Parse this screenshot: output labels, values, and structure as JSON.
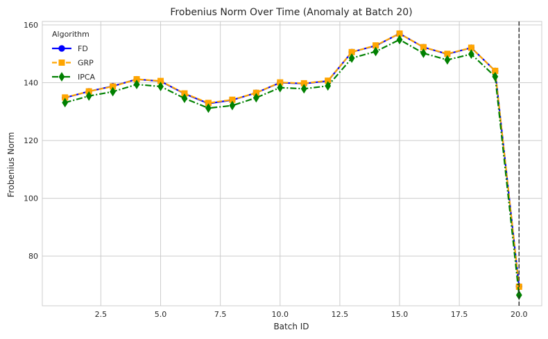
{
  "chart_data": {
    "type": "line",
    "title": "Frobenius Norm Over Time (Anomaly at Batch 20)",
    "xlabel": "Batch ID",
    "ylabel": "Frobenius Norm",
    "xlim": [
      0.05,
      20.95
    ],
    "ylim": [
      62.8,
      161.2
    ],
    "xticks": [
      2.5,
      5.0,
      7.5,
      10.0,
      12.5,
      15.0,
      17.5,
      20.0
    ],
    "xtick_labels": [
      "2.5",
      "5.0",
      "7.5",
      "10.0",
      "12.5",
      "15.0",
      "17.5",
      "20.0"
    ],
    "yticks": [
      80,
      100,
      120,
      140,
      160
    ],
    "ytick_labels": [
      "80",
      "100",
      "120",
      "140",
      "160"
    ],
    "grid": true,
    "legend": {
      "title": "Algorithm",
      "placement": "top-left"
    },
    "x": [
      1,
      2,
      3,
      4,
      5,
      6,
      7,
      8,
      9,
      10,
      11,
      12,
      13,
      14,
      15,
      16,
      17,
      18,
      19,
      20
    ],
    "series": [
      {
        "name": "FD",
        "color": "#0000ff",
        "marker": "circle",
        "line_style": "solid",
        "values": [
          134.8,
          137.0,
          138.8,
          141.2,
          140.5,
          136.2,
          132.8,
          134.0,
          136.5,
          140.0,
          139.7,
          140.6,
          150.6,
          152.8,
          157.0,
          152.3,
          149.9,
          152.1,
          144.1,
          69.5
        ]
      },
      {
        "name": "GRP",
        "color": "#ffa500",
        "marker": "square",
        "line_style": "dashed",
        "values": [
          134.9,
          137.0,
          138.7,
          141.2,
          140.6,
          136.3,
          133.0,
          134.1,
          136.5,
          140.1,
          139.8,
          140.7,
          150.6,
          152.9,
          157.0,
          152.3,
          150.0,
          152.1,
          144.1,
          69.4
        ]
      },
      {
        "name": "IPCA",
        "color": "#008000",
        "marker": "thin_diamond",
        "line_style": "dashdot",
        "values": [
          133.1,
          135.4,
          136.9,
          139.4,
          138.7,
          134.6,
          131.2,
          132.1,
          134.8,
          138.3,
          137.9,
          138.9,
          148.5,
          150.8,
          154.9,
          150.2,
          147.9,
          149.9,
          142.1,
          66.5
        ]
      }
    ],
    "annotations": [
      {
        "type": "vertical_line",
        "x": 20,
        "color": "#262626",
        "line_style": "dashed"
      }
    ]
  }
}
